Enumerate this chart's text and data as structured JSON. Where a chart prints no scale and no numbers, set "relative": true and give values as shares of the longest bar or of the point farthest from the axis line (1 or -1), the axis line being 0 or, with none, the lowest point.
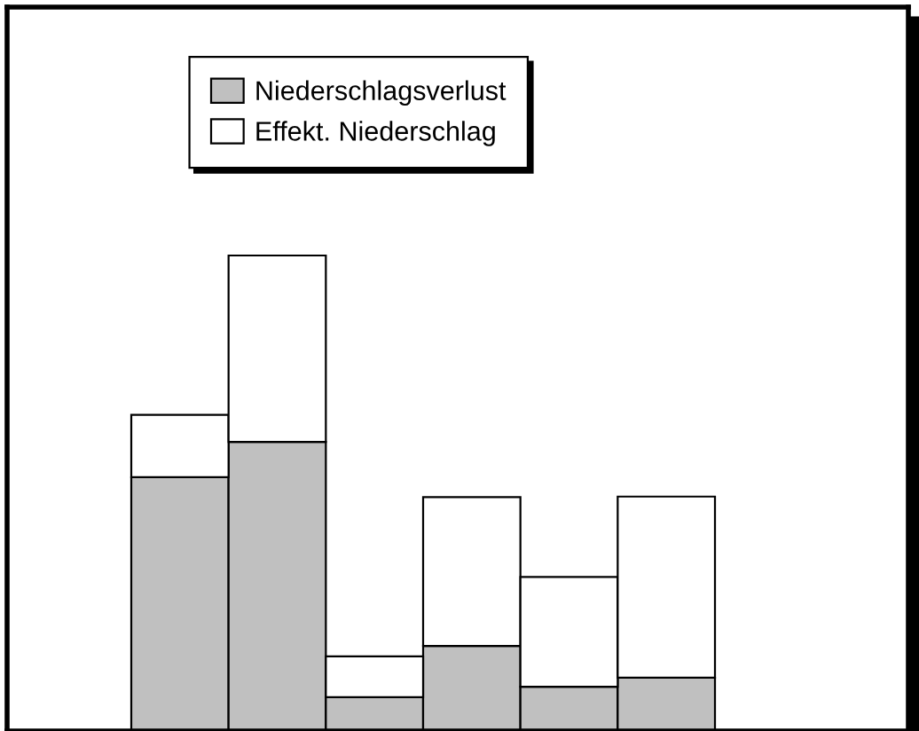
{
  "chart_data": {
    "type": "bar",
    "relative": true,
    "stacked": true,
    "categories": [
      null,
      null,
      null,
      null,
      null,
      null
    ],
    "series": [
      {
        "name": "Niederschlagsverlust",
        "color": "#c0c0c0",
        "values": [
          0.534,
          0.608,
          0.071,
          0.179,
          0.093,
          0.112
        ]
      },
      {
        "name": "Effekt. Niederschlag",
        "color": "#ffffff",
        "values": [
          0.131,
          0.392,
          0.086,
          0.313,
          0.231,
          0.381
        ]
      }
    ],
    "legend": "top",
    "grid": false
  }
}
